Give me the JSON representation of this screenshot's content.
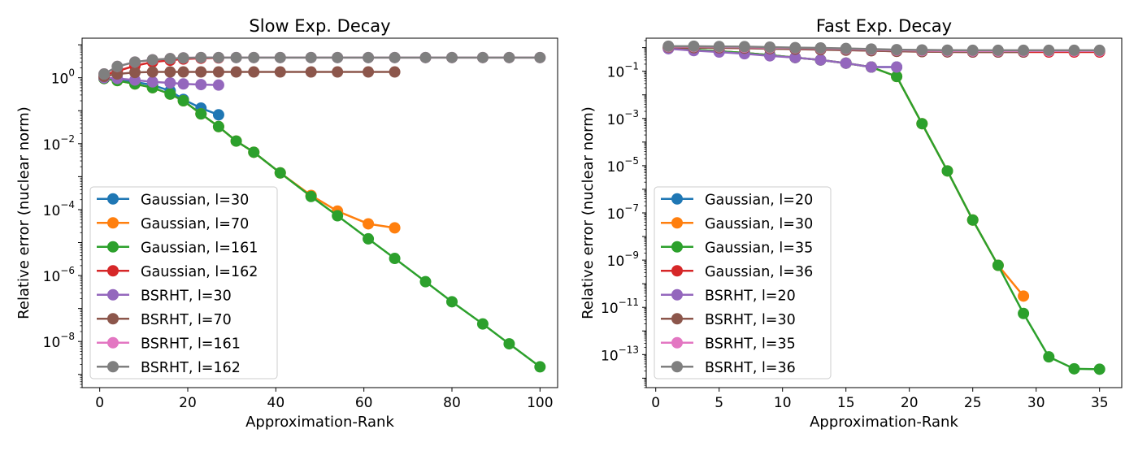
{
  "chart_data": [
    {
      "type": "line",
      "title": "Slow Exp. Decay",
      "xlabel": "Approximation-Rank",
      "ylabel": "Relative error (nuclear norm)",
      "yscale": "log",
      "xlim": [
        -4,
        104
      ],
      "ylim_log10": [
        -9.4,
        1.2
      ],
      "xticks": [
        0,
        20,
        40,
        60,
        80,
        100
      ],
      "xtick_labels": [
        "0",
        "20",
        "40",
        "60",
        "80",
        "100"
      ],
      "yticks_log10": [
        0,
        -2,
        -4,
        -6,
        -8
      ],
      "ytick_labels": [
        "10",
        "10",
        "10",
        "10",
        "10"
      ],
      "ytick_exponents": [
        "0",
        "−2",
        "−4",
        "−6",
        "−8"
      ],
      "legend_position": "lower-left",
      "grid": false,
      "series": [
        {
          "name": "Gaussian, l=30",
          "color": "#1f77b4",
          "x": [
            1,
            4,
            8,
            12,
            16,
            19,
            23,
            27
          ],
          "y": [
            0.95,
            0.85,
            0.75,
            0.6,
            0.4,
            0.22,
            0.12,
            0.075
          ]
        },
        {
          "name": "Gaussian, l=70",
          "color": "#ff7f0e",
          "x": [
            1,
            4,
            8,
            12,
            16,
            19,
            23,
            27,
            31,
            35,
            41,
            48,
            54,
            61,
            67
          ],
          "y": [
            0.95,
            0.82,
            0.65,
            0.5,
            0.32,
            0.2,
            0.08,
            0.033,
            0.012,
            0.0055,
            0.0013,
            0.00027,
            9e-05,
            3.7e-05,
            2.8e-05
          ]
        },
        {
          "name": "Gaussian, l=161",
          "color": "#2ca02c",
          "x": [
            1,
            4,
            8,
            12,
            16,
            19,
            23,
            27,
            31,
            35,
            41,
            48,
            54,
            61,
            67,
            74,
            80,
            87,
            93,
            100
          ],
          "y": [
            0.95,
            0.82,
            0.65,
            0.5,
            0.32,
            0.2,
            0.08,
            0.033,
            0.012,
            0.0055,
            0.0013,
            0.00025,
            6.5e-05,
            1.3e-05,
            3.3e-06,
            6.5e-07,
            1.6e-07,
            3.4e-08,
            8.5e-09,
            1.7e-09
          ]
        },
        {
          "name": "Gaussian, l=162",
          "color": "#d62728",
          "x": [
            1,
            4,
            8,
            12,
            16,
            19,
            23,
            27
          ],
          "y": [
            1.2,
            1.6,
            2.3,
            3.0,
            3.4,
            3.7,
            3.9,
            4.0
          ]
        },
        {
          "name": "BSRHT, l=30",
          "color": "#9467bd",
          "x": [
            1,
            4,
            8,
            12,
            16,
            19,
            23,
            27
          ],
          "y": [
            1.0,
            0.95,
            0.85,
            0.75,
            0.7,
            0.65,
            0.62,
            0.6
          ]
        },
        {
          "name": "BSRHT, l=70",
          "color": "#8c564b",
          "x": [
            1,
            4,
            8,
            12,
            16,
            19,
            23,
            27,
            31,
            35,
            41,
            48,
            54,
            61,
            67
          ],
          "y": [
            1.1,
            1.3,
            1.45,
            1.5,
            1.5,
            1.5,
            1.5,
            1.5,
            1.5,
            1.5,
            1.5,
            1.5,
            1.5,
            1.5,
            1.5
          ]
        },
        {
          "name": "BSRHT, l=161",
          "color": "#e377c2",
          "x": [
            1,
            4,
            8,
            12,
            16,
            19,
            23,
            27,
            31,
            35,
            41,
            48,
            54,
            61,
            67,
            74,
            80,
            87,
            93,
            100
          ],
          "y": [
            1.3,
            2.2,
            3.0,
            3.5,
            3.8,
            4.0,
            4.1,
            4.1,
            4.1,
            4.1,
            4.1,
            4.1,
            4.1,
            4.1,
            4.1,
            4.1,
            4.1,
            4.1,
            4.1,
            4.1
          ]
        },
        {
          "name": "BSRHT, l=162",
          "color": "#7f7f7f",
          "x": [
            1,
            4,
            8,
            12,
            16,
            19,
            23,
            27,
            31,
            35,
            41,
            48,
            54,
            61,
            67,
            74,
            80,
            87,
            93,
            100
          ],
          "y": [
            1.3,
            2.2,
            3.0,
            3.5,
            3.8,
            4.0,
            4.1,
            4.1,
            4.1,
            4.1,
            4.1,
            4.1,
            4.1,
            4.1,
            4.1,
            4.1,
            4.1,
            4.1,
            4.1,
            4.1
          ]
        }
      ]
    },
    {
      "type": "line",
      "title": "Fast Exp. Decay",
      "xlabel": "Approximation-Rank",
      "ylabel": "Relative error (nuclear norm)",
      "yscale": "log",
      "xlim": [
        -0.75,
        36.75
      ],
      "ylim_log10": [
        -14.4,
        0.4
      ],
      "xticks": [
        0,
        5,
        10,
        15,
        20,
        25,
        30,
        35
      ],
      "xtick_labels": [
        "0",
        "5",
        "10",
        "15",
        "20",
        "25",
        "30",
        "35"
      ],
      "yticks_log10": [
        -1,
        -3,
        -5,
        -7,
        -9,
        -11,
        -13
      ],
      "ytick_labels": [
        "10",
        "10",
        "10",
        "10",
        "10",
        "10",
        "10"
      ],
      "ytick_exponents": [
        "−1",
        "−3",
        "−5",
        "−7",
        "−9",
        "−11",
        "−13"
      ],
      "legend_position": "lower-left",
      "grid": false,
      "series": [
        {
          "name": "Gaussian, l=20",
          "color": "#1f77b4",
          "x": [
            1,
            3,
            5,
            7,
            9,
            11,
            13,
            15,
            17,
            19
          ],
          "y": [
            0.95,
            0.82,
            0.7,
            0.6,
            0.48,
            0.38,
            0.3,
            0.22,
            0.15,
            0.15
          ]
        },
        {
          "name": "Gaussian, l=30",
          "color": "#ff7f0e",
          "x": [
            1,
            3,
            5,
            7,
            9,
            11,
            13,
            15,
            17,
            19,
            21,
            23,
            25,
            27,
            29
          ],
          "y": [
            0.95,
            0.82,
            0.7,
            0.6,
            0.48,
            0.38,
            0.3,
            0.22,
            0.15,
            0.06,
            0.0006,
            6e-06,
            5e-08,
            6e-10,
            3e-11
          ]
        },
        {
          "name": "Gaussian, l=35",
          "color": "#2ca02c",
          "x": [
            1,
            3,
            5,
            7,
            9,
            11,
            13,
            15,
            17,
            19,
            21,
            23,
            25,
            27,
            29,
            31,
            33,
            35
          ],
          "y": [
            0.95,
            0.82,
            0.7,
            0.6,
            0.48,
            0.38,
            0.3,
            0.22,
            0.15,
            0.06,
            0.0006,
            6e-06,
            5e-08,
            6e-10,
            5.5e-12,
            8e-14,
            2.5e-14,
            2.4e-14
          ]
        },
        {
          "name": "Gaussian, l=36",
          "color": "#d62728",
          "x": [
            1,
            3,
            5,
            7,
            9,
            11,
            13,
            15,
            17,
            19,
            21,
            23,
            25,
            27,
            29,
            31,
            33,
            35
          ],
          "y": [
            1.0,
            1.0,
            0.98,
            0.95,
            0.92,
            0.88,
            0.84,
            0.8,
            0.75,
            0.7,
            0.68,
            0.66,
            0.65,
            0.65,
            0.65,
            0.65,
            0.65,
            0.65
          ]
        },
        {
          "name": "BSRHT, l=20",
          "color": "#9467bd",
          "x": [
            1,
            3,
            5,
            7,
            9,
            11,
            13,
            15,
            17,
            19
          ],
          "y": [
            0.9,
            0.75,
            0.65,
            0.55,
            0.45,
            0.38,
            0.3,
            0.22,
            0.15,
            0.15
          ]
        },
        {
          "name": "BSRHT, l=30",
          "color": "#8c564b",
          "x": [
            1,
            3,
            5,
            7,
            9,
            11,
            13,
            15,
            17,
            19,
            21,
            23,
            25,
            27,
            29
          ],
          "y": [
            1.05,
            1.0,
            0.98,
            0.95,
            0.9,
            0.86,
            0.82,
            0.78,
            0.74,
            0.7,
            0.68,
            0.66,
            0.65,
            0.65,
            0.65
          ]
        },
        {
          "name": "BSRHT, l=35",
          "color": "#e377c2",
          "x": [
            1,
            3,
            5,
            7,
            9,
            11,
            13,
            15,
            17,
            19,
            21,
            23,
            25,
            27,
            29,
            31,
            33,
            35
          ],
          "y": [
            1.1,
            1.1,
            1.08,
            1.05,
            1.0,
            0.97,
            0.93,
            0.88,
            0.83,
            0.78,
            0.75,
            0.73,
            0.72,
            0.72,
            0.72,
            0.72,
            0.72,
            0.72
          ]
        },
        {
          "name": "BSRHT, l=36",
          "color": "#7f7f7f",
          "x": [
            1,
            3,
            5,
            7,
            9,
            11,
            13,
            15,
            17,
            19,
            21,
            23,
            25,
            27,
            29,
            31,
            33,
            35
          ],
          "y": [
            1.15,
            1.15,
            1.12,
            1.1,
            1.05,
            1.0,
            0.97,
            0.92,
            0.87,
            0.82,
            0.8,
            0.78,
            0.77,
            0.77,
            0.77,
            0.77,
            0.77,
            0.77
          ]
        }
      ]
    }
  ]
}
